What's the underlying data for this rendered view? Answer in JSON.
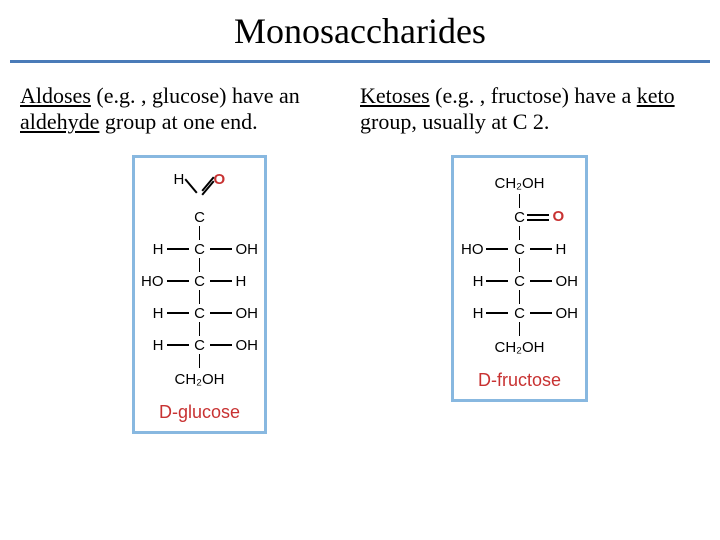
{
  "title": "Monosaccharides",
  "colors": {
    "underline": "#4a7bb8",
    "box_border": "#88b8e0",
    "label_red": "#c83232",
    "text": "#000000",
    "background": "#ffffff"
  },
  "descriptions": {
    "left": {
      "term": "Aldoses",
      "example": "(e.g. , glucose) have an ",
      "group": "aldehyde",
      "rest": " group at one end."
    },
    "right": {
      "term": "Ketoses",
      "example": "(e.g. , fructose) have a ",
      "group": "keto",
      "rest": " group, usually at C 2."
    }
  },
  "structures": {
    "glucose": {
      "label": "D-glucose",
      "type": "aldose",
      "aldehyde": {
        "h": "H",
        "o": "O"
      },
      "carbons": [
        {
          "left": "H",
          "right": "OH"
        },
        {
          "left": "HO",
          "right": "H"
        },
        {
          "left": "H",
          "right": "OH"
        },
        {
          "left": "H",
          "right": "OH"
        }
      ],
      "terminal": "CH₂OH",
      "c_symbol": "C"
    },
    "fructose": {
      "label": "D-fructose",
      "type": "ketose",
      "top_terminal": "CH₂OH",
      "ketone": {
        "o": "O"
      },
      "carbons": [
        {
          "left": "HO",
          "right": "H"
        },
        {
          "left": "H",
          "right": "OH"
        },
        {
          "left": "H",
          "right": "OH"
        }
      ],
      "terminal": "CH₂OH",
      "c_symbol": "C"
    }
  }
}
